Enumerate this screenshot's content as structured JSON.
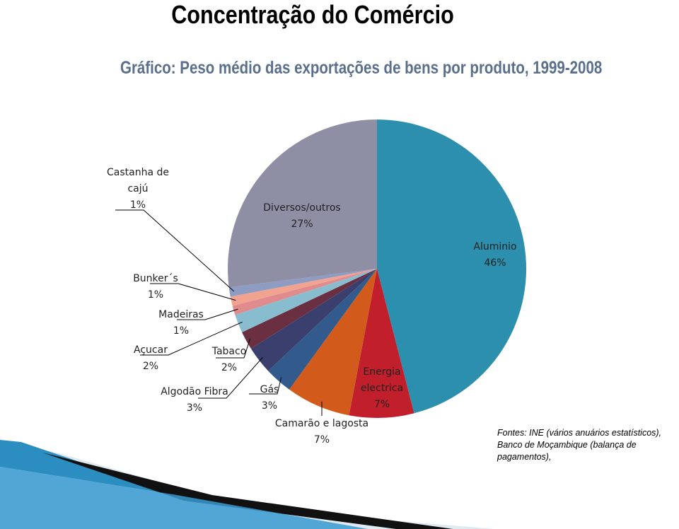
{
  "chart_data": {
    "type": "pie",
    "title": "Concentração do Comércio",
    "subtitle": "Gráfico: Peso médio das exportações de bens por produto, 1999-2008",
    "categories": [
      "Aluminio",
      "Energia electrica",
      "Camarão e lagosta",
      "Gás",
      "Algodão Fibra",
      "Tabaco",
      "Açucar",
      "Madeiras",
      "Bunker´s",
      "Castanha de cajú",
      "Diversos/outros"
    ],
    "values": [
      46,
      7,
      7,
      3,
      3,
      2,
      2,
      1,
      1,
      1,
      27
    ],
    "value_labels": [
      "46%",
      "7%",
      "7%",
      "3%",
      "3%",
      "2%",
      "2%",
      "1%",
      "1%",
      "1%",
      "27%"
    ],
    "colors": [
      "#2b8fad",
      "#c11f2b",
      "#d25a1b",
      "#335a8c",
      "#3a3f6e",
      "#6a3041",
      "#88bdd0",
      "#e08b8d",
      "#f1a390",
      "#8e9bc3",
      "#8e8fa5"
    ]
  },
  "source": [
    "Fontes: INE (vários anuários estatísticos),",
    "Banco de Moçambique (balança de pagamentos),"
  ]
}
